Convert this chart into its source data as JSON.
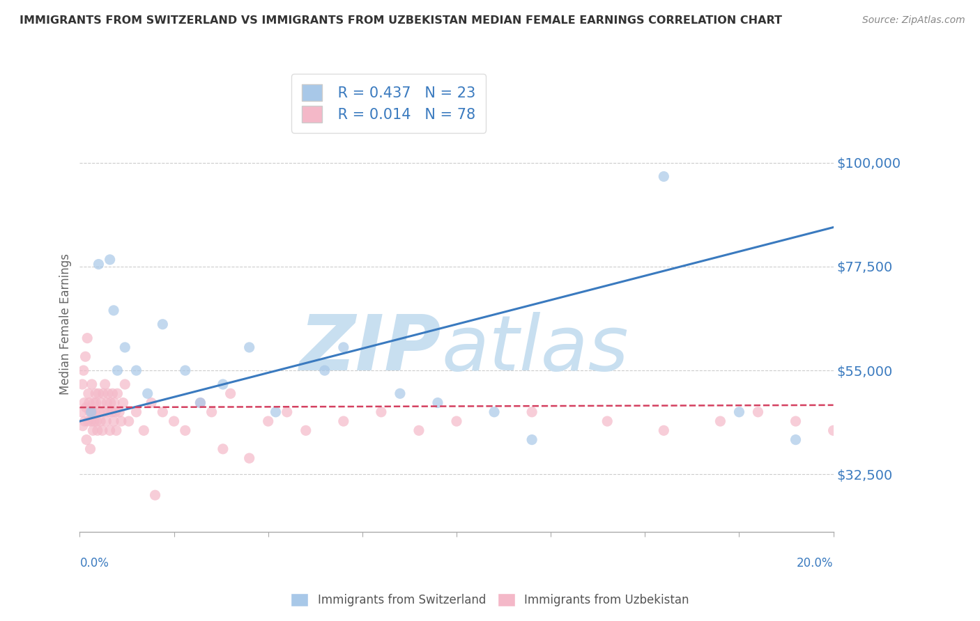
{
  "title": "IMMIGRANTS FROM SWITZERLAND VS IMMIGRANTS FROM UZBEKISTAN MEDIAN FEMALE EARNINGS CORRELATION CHART",
  "source": "Source: ZipAtlas.com",
  "ylabel": "Median Female Earnings",
  "xlim": [
    0.0,
    20.0
  ],
  "ylim": [
    20000,
    110000
  ],
  "yticks": [
    32500,
    55000,
    77500,
    100000
  ],
  "ytick_labels": [
    "$32,500",
    "$55,000",
    "$77,500",
    "$100,000"
  ],
  "swiss_color": "#a8c8e8",
  "uzbek_color": "#f4b8c8",
  "swiss_line_color": "#3a7abf",
  "uzbek_line_color": "#d44060",
  "R_swiss": 0.437,
  "N_swiss": 23,
  "R_uzbek": 0.014,
  "N_uzbek": 78,
  "swiss_line_y0": 44000,
  "swiss_line_y1": 86000,
  "uzbek_line_y0": 47000,
  "uzbek_line_y1": 47500,
  "swiss_x": [
    0.3,
    0.5,
    0.8,
    0.9,
    1.0,
    1.2,
    1.5,
    1.8,
    2.2,
    2.8,
    3.2,
    3.8,
    4.5,
    5.2,
    6.5,
    7.0,
    8.5,
    9.5,
    11.0,
    12.0,
    15.5,
    17.5,
    19.0
  ],
  "swiss_y": [
    46000,
    78000,
    79000,
    68000,
    55000,
    60000,
    55000,
    50000,
    65000,
    55000,
    48000,
    52000,
    60000,
    46000,
    55000,
    60000,
    50000,
    48000,
    46000,
    40000,
    97000,
    46000,
    40000
  ],
  "uzbek_x": [
    0.05,
    0.07,
    0.08,
    0.1,
    0.12,
    0.13,
    0.15,
    0.17,
    0.18,
    0.2,
    0.22,
    0.23,
    0.25,
    0.27,
    0.28,
    0.3,
    0.32,
    0.33,
    0.35,
    0.37,
    0.38,
    0.4,
    0.42,
    0.43,
    0.45,
    0.47,
    0.5,
    0.52,
    0.55,
    0.57,
    0.6,
    0.62,
    0.65,
    0.67,
    0.7,
    0.72,
    0.75,
    0.77,
    0.8,
    0.82,
    0.85,
    0.87,
    0.9,
    0.92,
    0.95,
    0.97,
    1.0,
    1.05,
    1.1,
    1.15,
    1.2,
    1.3,
    1.5,
    1.7,
    1.9,
    2.2,
    2.5,
    2.8,
    3.2,
    3.5,
    4.0,
    5.0,
    5.5,
    6.0,
    7.0,
    8.0,
    9.0,
    10.0,
    12.0,
    14.0,
    15.5,
    17.0,
    18.0,
    19.0,
    20.0,
    3.8,
    4.5,
    2.0
  ],
  "uzbek_y": [
    46000,
    52000,
    43000,
    55000,
    48000,
    44000,
    58000,
    47000,
    40000,
    62000,
    44000,
    50000,
    48000,
    46000,
    38000,
    44000,
    52000,
    46000,
    42000,
    48000,
    44000,
    46000,
    50000,
    48000,
    44000,
    42000,
    50000,
    46000,
    44000,
    48000,
    42000,
    50000,
    46000,
    52000,
    44000,
    48000,
    50000,
    46000,
    42000,
    48000,
    46000,
    50000,
    44000,
    48000,
    46000,
    42000,
    50000,
    46000,
    44000,
    48000,
    52000,
    44000,
    46000,
    42000,
    48000,
    46000,
    44000,
    42000,
    48000,
    46000,
    50000,
    44000,
    46000,
    42000,
    44000,
    46000,
    42000,
    44000,
    46000,
    44000,
    42000,
    44000,
    46000,
    44000,
    42000,
    38000,
    36000,
    28000
  ],
  "watermark_zip_color": "#c8dff0",
  "watermark_atlas_color": "#c8dff0",
  "background_color": "#ffffff",
  "grid_color": "#cccccc",
  "title_color": "#333333",
  "source_color": "#888888",
  "ylabel_color": "#666666",
  "xtick_color": "#555555",
  "ytick_color": "#3a7abf"
}
